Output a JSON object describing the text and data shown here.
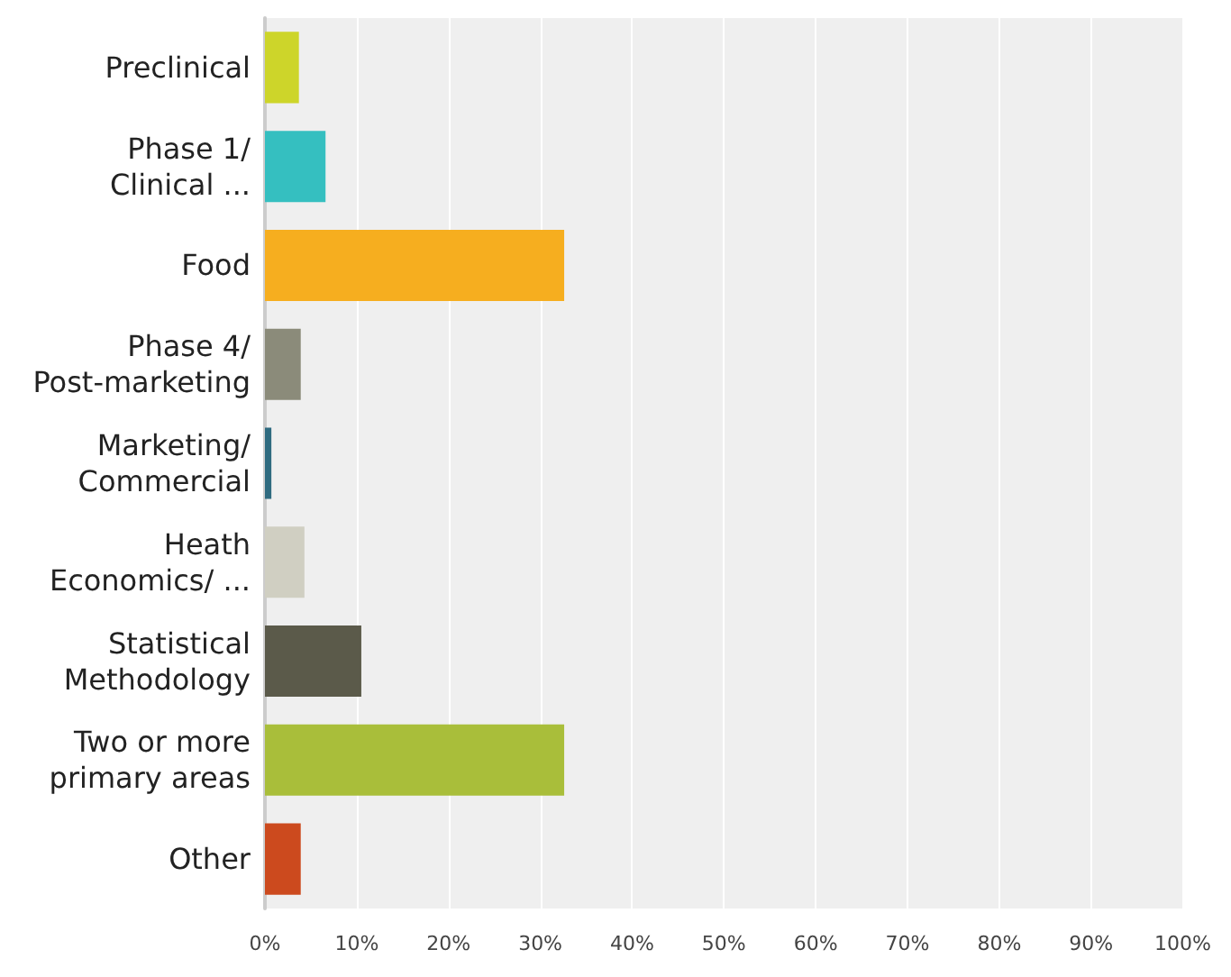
{
  "chart_data": {
    "type": "bar",
    "orientation": "horizontal",
    "categories": [
      "Preclinical",
      "Phase 1/\nClinical ...",
      "Food",
      "Phase 4/\nPost-marketing",
      "Marketing/\nCommercial",
      "Heath\nEconomics/ ...",
      "Statistical\nMethodology",
      "Two or more\nprimary areas",
      "Other"
    ],
    "values": [
      3.7,
      6.6,
      32.6,
      3.9,
      0.7,
      4.3,
      10.5,
      32.6,
      3.9
    ],
    "colors": [
      "#cdd52a",
      "#35bfc0",
      "#f6ae1f",
      "#8b8b7a",
      "#2f6b80",
      "#d0cfc2",
      "#5b5a4a",
      "#a9be3a",
      "#cc4a1e"
    ],
    "xlim": [
      0,
      100
    ],
    "xticks": [
      {
        "value": 0,
        "label": "0%"
      },
      {
        "value": 10,
        "label": "10%"
      },
      {
        "value": 20,
        "label": "20%"
      },
      {
        "value": 30,
        "label": "30%"
      },
      {
        "value": 40,
        "label": "40%"
      },
      {
        "value": 50,
        "label": "50%"
      },
      {
        "value": 60,
        "label": "60%"
      },
      {
        "value": 70,
        "label": "70%"
      },
      {
        "value": 80,
        "label": "80%"
      },
      {
        "value": 90,
        "label": "90%"
      },
      {
        "value": 100,
        "label": "100%"
      }
    ],
    "grid": "x"
  }
}
